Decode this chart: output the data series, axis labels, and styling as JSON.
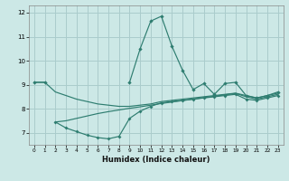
{
  "xlabel": "Humidex (Indice chaleur)",
  "x_values": [
    0,
    1,
    2,
    3,
    4,
    5,
    6,
    7,
    8,
    9,
    10,
    11,
    12,
    13,
    14,
    15,
    16,
    17,
    18,
    19,
    20,
    21,
    22,
    23
  ],
  "line_spike": [
    9.1,
    9.1,
    null,
    null,
    null,
    null,
    null,
    null,
    null,
    9.1,
    10.5,
    11.65,
    11.85,
    10.6,
    null,
    null,
    null,
    null,
    9.05,
    9.1,
    null,
    null,
    8.55,
    8.7
  ],
  "line_spike_full": [
    9.1,
    9.1,
    null,
    null,
    null,
    null,
    null,
    null,
    null,
    9.1,
    10.5,
    11.65,
    11.85,
    10.6,
    9.6,
    8.8,
    9.05,
    8.6,
    9.05,
    9.1,
    8.55,
    8.45,
    8.55,
    8.7
  ],
  "line_upper_diag": [
    9.1,
    9.1,
    8.7,
    8.55,
    8.4,
    8.3,
    8.2,
    8.15,
    8.1,
    8.1,
    8.15,
    8.2,
    8.3,
    8.35,
    8.4,
    8.45,
    8.5,
    8.55,
    8.6,
    8.65,
    8.55,
    8.45,
    8.55,
    8.65
  ],
  "line_lower_diag1": [
    null,
    null,
    7.45,
    7.2,
    7.05,
    6.9,
    6.8,
    6.75,
    6.85,
    7.6,
    7.9,
    8.1,
    8.25,
    8.3,
    8.35,
    8.4,
    8.45,
    8.5,
    8.55,
    8.6,
    8.4,
    8.35,
    8.45,
    8.55
  ],
  "line_lower_diag2": [
    null,
    null,
    null,
    7.2,
    7.05,
    6.9,
    6.8,
    6.75,
    6.85,
    7.6,
    7.9,
    8.1,
    8.25,
    8.3,
    8.35,
    8.4,
    8.45,
    8.5,
    8.55,
    8.6,
    8.4,
    8.35,
    8.45,
    8.55
  ],
  "line_mid": [
    null,
    null,
    null,
    null,
    null,
    null,
    null,
    null,
    null,
    null,
    8.05,
    8.15,
    8.25,
    8.3,
    8.35,
    8.4,
    8.45,
    8.5,
    8.55,
    8.6,
    8.4,
    8.35,
    8.45,
    8.55
  ],
  "color": "#2e7d70",
  "bg_color": "#cce8e6",
  "grid_color": "#aacccc",
  "ylim": [
    6.5,
    12.3
  ],
  "xlim": [
    -0.5,
    23.5
  ],
  "yticks": [
    7,
    8,
    9,
    10,
    11,
    12
  ],
  "xticks": [
    0,
    1,
    2,
    3,
    4,
    5,
    6,
    7,
    8,
    9,
    10,
    11,
    12,
    13,
    14,
    15,
    16,
    17,
    18,
    19,
    20,
    21,
    22,
    23
  ]
}
